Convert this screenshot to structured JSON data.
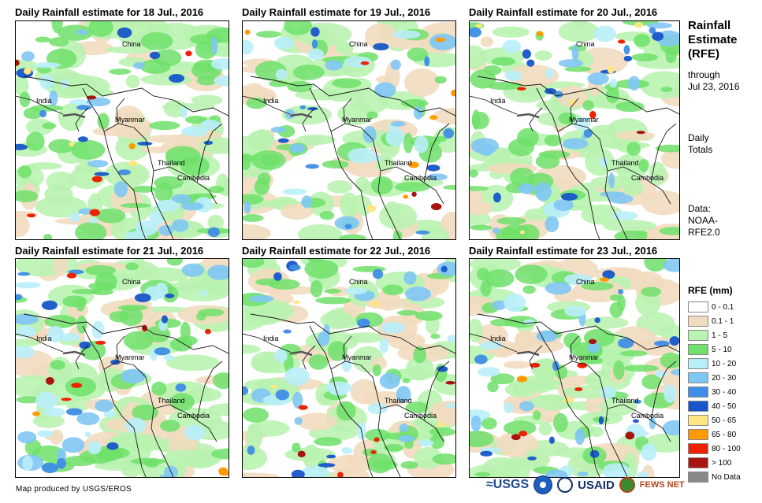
{
  "panels": [
    {
      "title": "Daily Rainfall estimate for 18 Jul., 2016",
      "seed": 18,
      "wet": 0.95
    },
    {
      "title": "Daily Rainfall estimate for 19 Jul., 2016",
      "seed": 19,
      "wet": 0.85
    },
    {
      "title": "Daily Rainfall estimate for 20 Jul., 2016",
      "seed": 20,
      "wet": 0.9
    },
    {
      "title": "Daily Rainfall estimate for 21 Jul., 2016",
      "seed": 21,
      "wet": 1.1
    },
    {
      "title": "Daily Rainfall estimate for 22 Jul., 2016",
      "seed": 22,
      "wet": 1.0
    },
    {
      "title": "Daily Rainfall estimate for 23 Jul., 2016",
      "seed": 23,
      "wet": 1.05
    }
  ],
  "map_labels": {
    "china": "China",
    "india": "India",
    "myanmar": "Myanmar",
    "thailand": "Thailand",
    "cambodia": "Cambodia"
  },
  "side": {
    "title_line1": "Rainfall",
    "title_line2": "Estimate",
    "title_line3": "(RFE)",
    "through_line1": "through",
    "through_line2": "Jul 23, 2016",
    "totals_line1": "Daily",
    "totals_line2": "Totals",
    "data_line1": "Data:",
    "data_line2": "NOAA-",
    "data_line3": "RFE2.0"
  },
  "legend": {
    "title": "RFE (mm)",
    "items": [
      {
        "label": "0 - 0.1",
        "color": "#ffffff"
      },
      {
        "label": "0.1 - 1",
        "color": "#f1dcbf"
      },
      {
        "label": "1 - 5",
        "color": "#b9f3b0"
      },
      {
        "label": "5 - 10",
        "color": "#6fe06a"
      },
      {
        "label": "10 - 20",
        "color": "#b9eef9"
      },
      {
        "label": "20 - 30",
        "color": "#7fc7f4"
      },
      {
        "label": "30 - 40",
        "color": "#3f8de6"
      },
      {
        "label": "40 - 50",
        "color": "#1656c9"
      },
      {
        "label": "50 - 65",
        "color": "#ffe681"
      },
      {
        "label": "65 - 80",
        "color": "#ff9b00"
      },
      {
        "label": "80 - 100",
        "color": "#ee2200"
      },
      {
        "label": "> 100",
        "color": "#a8140e"
      },
      {
        "label": "No Data",
        "color": "#888888"
      }
    ]
  },
  "credit": "Map produced by USGS/EROS",
  "logos": {
    "usgs": "≈USGS",
    "usaid": "USAID",
    "fews": "FEWS NET"
  }
}
